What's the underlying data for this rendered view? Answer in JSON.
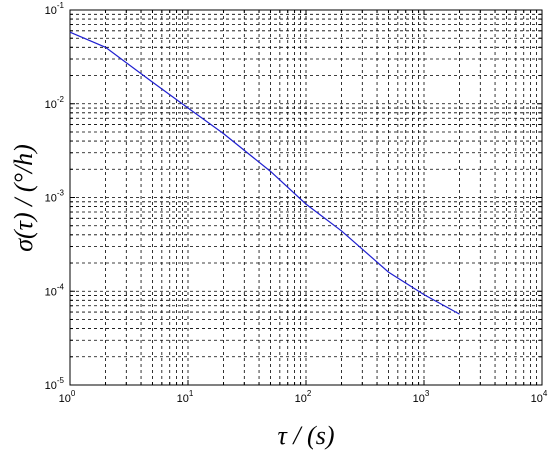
{
  "chart_data": {
    "type": "line",
    "xlabel": "τ / (s)",
    "ylabel": "σ(τ) / (°/h)",
    "x_scale": "log",
    "y_scale": "log",
    "xlim": [
      1,
      10000
    ],
    "ylim": [
      1e-05,
      0.1
    ],
    "grid": true,
    "x_ticks": [
      {
        "value": 1,
        "base": "10",
        "exp": "0"
      },
      {
        "value": 10,
        "base": "10",
        "exp": "1"
      },
      {
        "value": 100,
        "base": "10",
        "exp": "2"
      },
      {
        "value": 1000,
        "base": "10",
        "exp": "3"
      },
      {
        "value": 10000,
        "base": "10",
        "exp": "4"
      }
    ],
    "y_ticks": [
      {
        "value": 1e-05,
        "base": "10",
        "exp": "-5"
      },
      {
        "value": 0.0001,
        "base": "10",
        "exp": "-4"
      },
      {
        "value": 0.001,
        "base": "10",
        "exp": "-3"
      },
      {
        "value": 0.01,
        "base": "10",
        "exp": "-2"
      },
      {
        "value": 0.1,
        "base": "10",
        "exp": "-1"
      }
    ],
    "series": [
      {
        "color": "#1f1fd0",
        "x": [
          1,
          2,
          5,
          10,
          20,
          50,
          100,
          200,
          500,
          1000,
          2000
        ],
        "y": [
          0.058,
          0.04,
          0.017,
          0.009,
          0.0048,
          0.0019,
          0.00085,
          0.00044,
          0.00016,
          9.2e-05,
          5.7e-05
        ]
      }
    ]
  }
}
